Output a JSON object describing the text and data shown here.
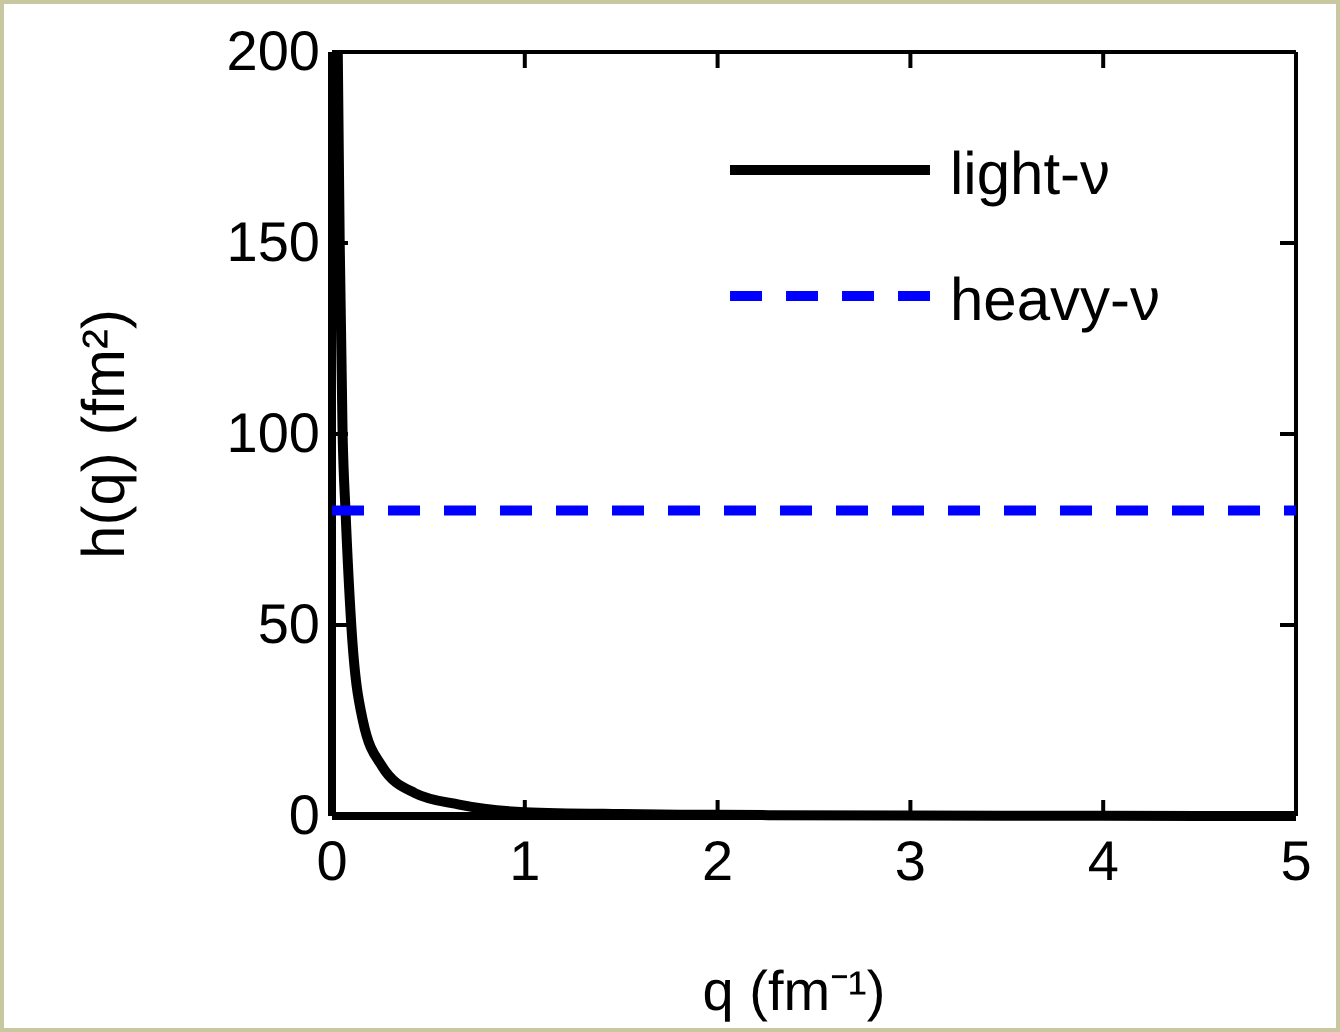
{
  "chart_data": {
    "type": "line",
    "xlabel": "q (fm⁻¹)",
    "ylabel": "h(q) (fm²)",
    "xlim": [
      0,
      5
    ],
    "ylim": [
      0,
      200
    ],
    "xticks": [
      0,
      1,
      2,
      3,
      4,
      5
    ],
    "yticks": [
      0,
      50,
      100,
      150,
      200
    ],
    "grid": false,
    "legend": "top right",
    "series": [
      {
        "name": "light-ν",
        "color": "#000000",
        "line_style": "solid",
        "x": [
          0.03,
          0.04,
          0.055,
          0.07,
          0.1,
          0.16,
          0.26,
          0.43,
          0.66,
          1,
          1.5,
          2,
          3,
          4,
          5
        ],
        "values": [
          200,
          150,
          100,
          80,
          50,
          25,
          13,
          6,
          3,
          1,
          0.5,
          0.3,
          0.1,
          0.05,
          0
        ]
      },
      {
        "name": "heavy-ν",
        "color": "#0000ff",
        "line_style": "dashed",
        "x": [
          0,
          5
        ],
        "values": [
          80,
          80
        ]
      }
    ]
  }
}
